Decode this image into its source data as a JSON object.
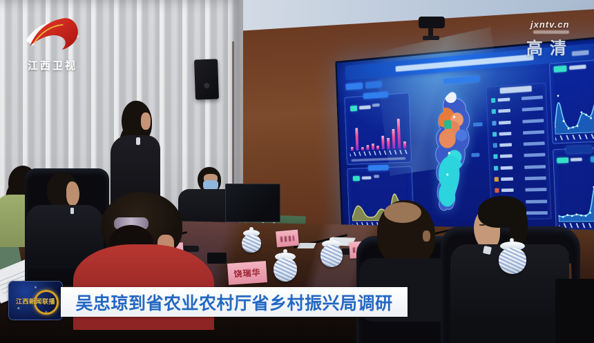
{
  "broadcast": {
    "channel_logo_text": "江西卫视",
    "watermark_site": "jxntv.cn",
    "watermark_hd": "高清",
    "badge_text": "江西新闻联播",
    "caption_headline": "吴忠琼到省农业农村厅省乡村振兴局调研"
  },
  "scene": {
    "name_plate_left": "张",
    "name_plate_center": "饶瑞华"
  },
  "screen": {
    "description": "wall LED dashboard, title and labels not legible",
    "bar_chart": {
      "type": "bar",
      "values": [
        8,
        60,
        6,
        12,
        15,
        9,
        35,
        28,
        52,
        78,
        16
      ],
      "bar_color": "#e84f9e"
    },
    "olive_area_chart": {
      "type": "area",
      "values": [
        10,
        45,
        40,
        12,
        10,
        12,
        35,
        30,
        15,
        85,
        55,
        20,
        8
      ],
      "fill": "#8f9440"
    },
    "line_chart_top": {
      "type": "area",
      "values": [
        15,
        75,
        25,
        10,
        12,
        14,
        40,
        35,
        28,
        60,
        55
      ],
      "fill": "#1f8fd8"
    },
    "line_chart_bottom": {
      "type": "area",
      "values": [
        12,
        10,
        14,
        12,
        15,
        13,
        12,
        18,
        70,
        95,
        92
      ],
      "fill": "#1f8fd8"
    },
    "list_icon_colors": [
      "#35c8d8",
      "#35c8d8",
      "#4a9de0",
      "#35c8d8",
      "#3a8fd8",
      "#35c8d8",
      "#35c8d8",
      "#d8a035",
      "#e05a3a",
      "#d84a2a",
      "#e05a3a"
    ],
    "map_region_colors": {
      "north_blob": "#eef2f6",
      "upper": "#e87a3a",
      "middle": "#ef9a70",
      "teal_spot": "#28b894",
      "south": "#2cd4de",
      "base": "#3b5bc8"
    }
  },
  "colors": {
    "caption_text": "#2368c4",
    "caption_bg": "#f5f7f9",
    "screen_bg": "#0b2090",
    "logo_red": "#d42b1e",
    "badge_gold": "#d8a020"
  }
}
